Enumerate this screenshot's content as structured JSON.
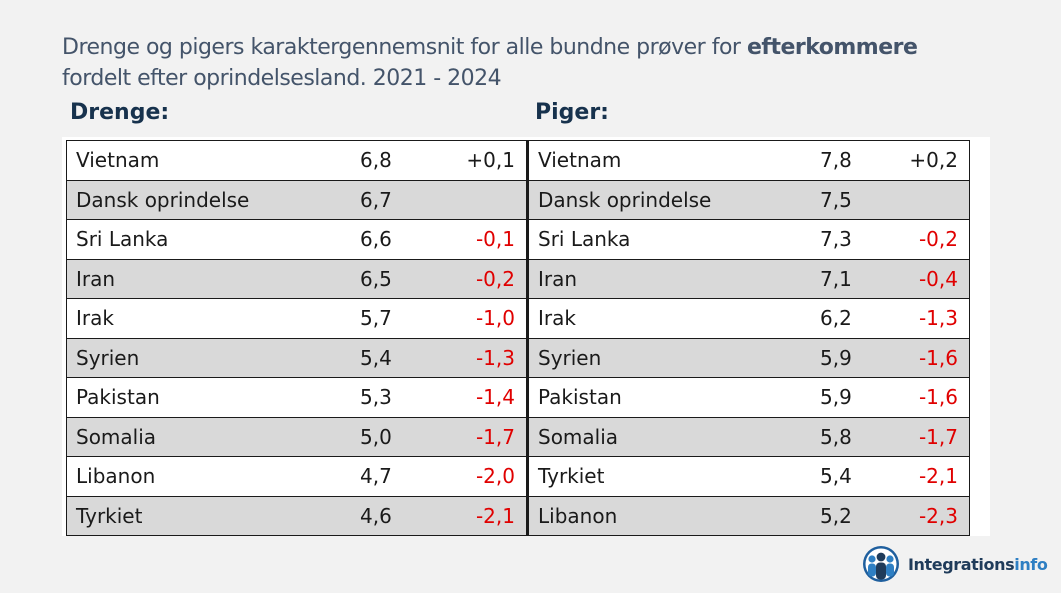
{
  "title": {
    "part1": "Drenge og pigers karaktergennemsnit for alle bundne prøver for ",
    "bold": "efterkommere",
    "part2": "fordelt efter oprindelsesland. 2021 - 2024"
  },
  "boys": {
    "heading": "Drenge:",
    "rows": [
      {
        "country": "Vietnam",
        "score": "6,8",
        "diff": "+0,1",
        "negative": false
      },
      {
        "country": "Dansk oprindelse",
        "score": "6,7",
        "diff": "",
        "negative": false
      },
      {
        "country": "Sri Lanka",
        "score": "6,6",
        "diff": "-0,1",
        "negative": true
      },
      {
        "country": "Iran",
        "score": "6,5",
        "diff": "-0,2",
        "negative": true
      },
      {
        "country": "Irak",
        "score": "5,7",
        "diff": "-1,0",
        "negative": true
      },
      {
        "country": "Syrien",
        "score": "5,4",
        "diff": "-1,3",
        "negative": true
      },
      {
        "country": "Pakistan",
        "score": "5,3",
        "diff": "-1,4",
        "negative": true
      },
      {
        "country": "Somalia",
        "score": "5,0",
        "diff": "-1,7",
        "negative": true
      },
      {
        "country": "Libanon",
        "score": "4,7",
        "diff": "-2,0",
        "negative": true
      },
      {
        "country": "Tyrkiet",
        "score": "4,6",
        "diff": "-2,1",
        "negative": true
      }
    ]
  },
  "girls": {
    "heading": "Piger:",
    "rows": [
      {
        "country": "Vietnam",
        "score": "7,8",
        "diff": "+0,2",
        "negative": false
      },
      {
        "country": "Dansk oprindelse",
        "score": "7,5",
        "diff": "",
        "negative": false
      },
      {
        "country": "Sri Lanka",
        "score": "7,3",
        "diff": "-0,2",
        "negative": true
      },
      {
        "country": "Iran",
        "score": "7,1",
        "diff": "-0,4",
        "negative": true
      },
      {
        "country": "Irak",
        "score": "6,2",
        "diff": "-1,3",
        "negative": true
      },
      {
        "country": "Syrien",
        "score": "5,9",
        "diff": "-1,6",
        "negative": true
      },
      {
        "country": "Pakistan",
        "score": "5,9",
        "diff": "-1,6",
        "negative": true
      },
      {
        "country": "Somalia",
        "score": "5,8",
        "diff": "-1,7",
        "negative": true
      },
      {
        "country": "Tyrkiet",
        "score": "5,4",
        "diff": "-2,1",
        "negative": true
      },
      {
        "country": "Libanon",
        "score": "5,2",
        "diff": "-2,3",
        "negative": true
      }
    ]
  },
  "logo": {
    "text_main": "Integrations",
    "text_accent": "info",
    "icon": "people-group-icon"
  },
  "colors": {
    "title": "#44546a",
    "heading": "#17324d",
    "negative": "#e00000",
    "shaded_row": "#d9d9d9"
  }
}
